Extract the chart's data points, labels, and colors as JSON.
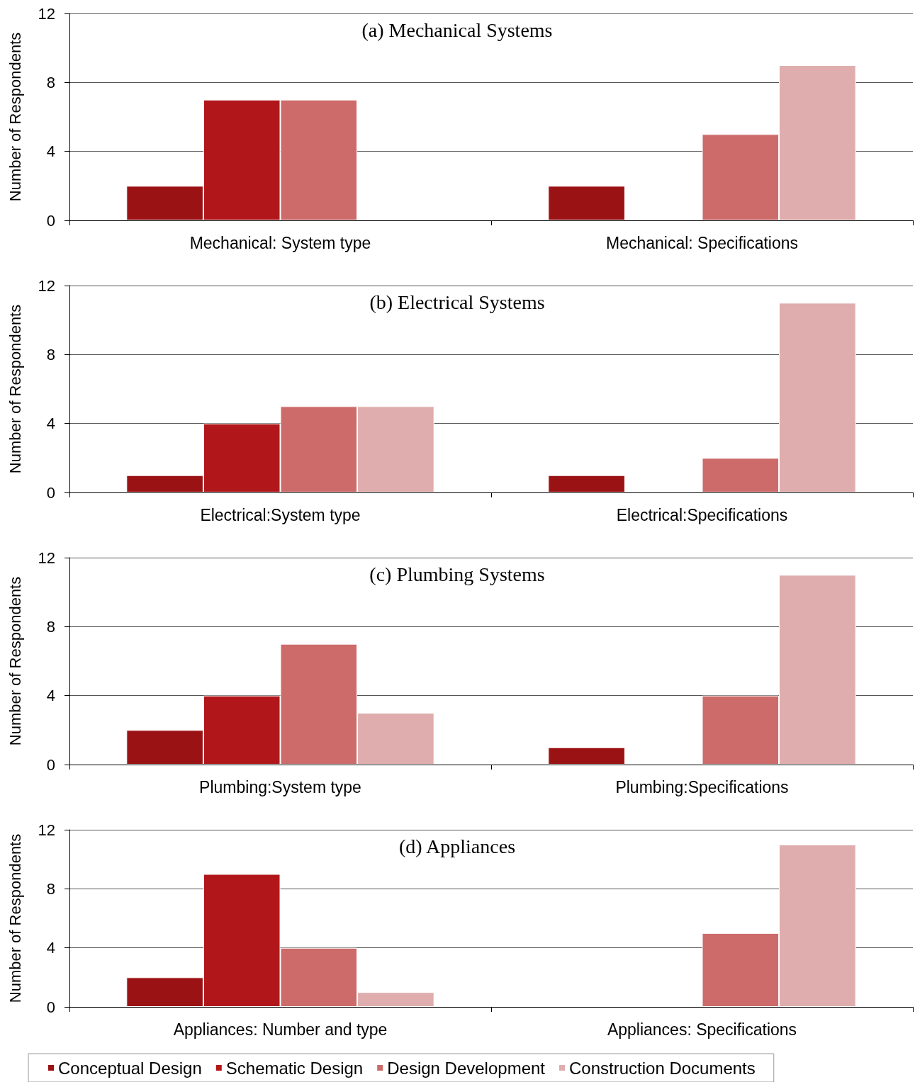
{
  "chart_data": [
    {
      "type": "bar",
      "title": "(a) Mechanical Systems",
      "ylabel": "Number of Respondents",
      "categories": [
        "Mechanical: System type",
        "Mechanical: Specifications"
      ],
      "ylim": [
        0,
        12
      ],
      "yticks": [
        0,
        4,
        8,
        12
      ],
      "grid": "y",
      "legend": false,
      "series": [
        {
          "color": "#9b1214",
          "values": [
            2,
            2
          ]
        },
        {
          "color": "#b1171a",
          "values": [
            7,
            null
          ]
        },
        {
          "color": "#cc6b69",
          "values": [
            7,
            5
          ]
        },
        {
          "color": "#dfadad",
          "values": [
            null,
            9
          ]
        }
      ]
    },
    {
      "type": "bar",
      "title": "(b) Electrical Systems",
      "ylabel": "Number of Respondents",
      "categories": [
        "Electrical:System type",
        "Electrical:Specifications"
      ],
      "ylim": [
        0,
        12
      ],
      "yticks": [
        0,
        4,
        8,
        12
      ],
      "grid": "y",
      "legend": false,
      "series": [
        {
          "color": "#9b1214",
          "values": [
            1,
            1
          ]
        },
        {
          "color": "#b1171a",
          "values": [
            4,
            null
          ]
        },
        {
          "color": "#cc6b69",
          "values": [
            5,
            2
          ]
        },
        {
          "color": "#dfadad",
          "values": [
            5,
            11
          ]
        }
      ]
    },
    {
      "type": "bar",
      "title": "(c) Plumbing Systems",
      "ylabel": "Number of Respondents",
      "categories": [
        "Plumbing:System type",
        "Plumbing:Specifications"
      ],
      "ylim": [
        0,
        12
      ],
      "yticks": [
        0,
        4,
        8,
        12
      ],
      "grid": "y",
      "legend": false,
      "series": [
        {
          "color": "#9b1214",
          "values": [
            2,
            1
          ]
        },
        {
          "color": "#b1171a",
          "values": [
            4,
            null
          ]
        },
        {
          "color": "#cc6b69",
          "values": [
            7,
            4
          ]
        },
        {
          "color": "#dfadad",
          "values": [
            3,
            11
          ]
        }
      ]
    },
    {
      "type": "bar",
      "title": "(d) Appliances",
      "ylabel": "Number of Respondents",
      "categories": [
        "Appliances: Number and type",
        "Appliances: Specifications"
      ],
      "ylim": [
        0,
        12
      ],
      "yticks": [
        0,
        4,
        8,
        12
      ],
      "grid": "y",
      "legend": "bottom",
      "series": [
        {
          "name": "Conceptual Design",
          "color": "#9b1214",
          "values": [
            2,
            null
          ]
        },
        {
          "name": "Schematic Design",
          "color": "#b1171a",
          "values": [
            9,
            null
          ]
        },
        {
          "name": "Design Development",
          "color": "#cc6b69",
          "values": [
            4,
            5
          ]
        },
        {
          "name": "Construction Documents",
          "color": "#dfadad",
          "values": [
            1,
            11
          ]
        }
      ]
    }
  ]
}
